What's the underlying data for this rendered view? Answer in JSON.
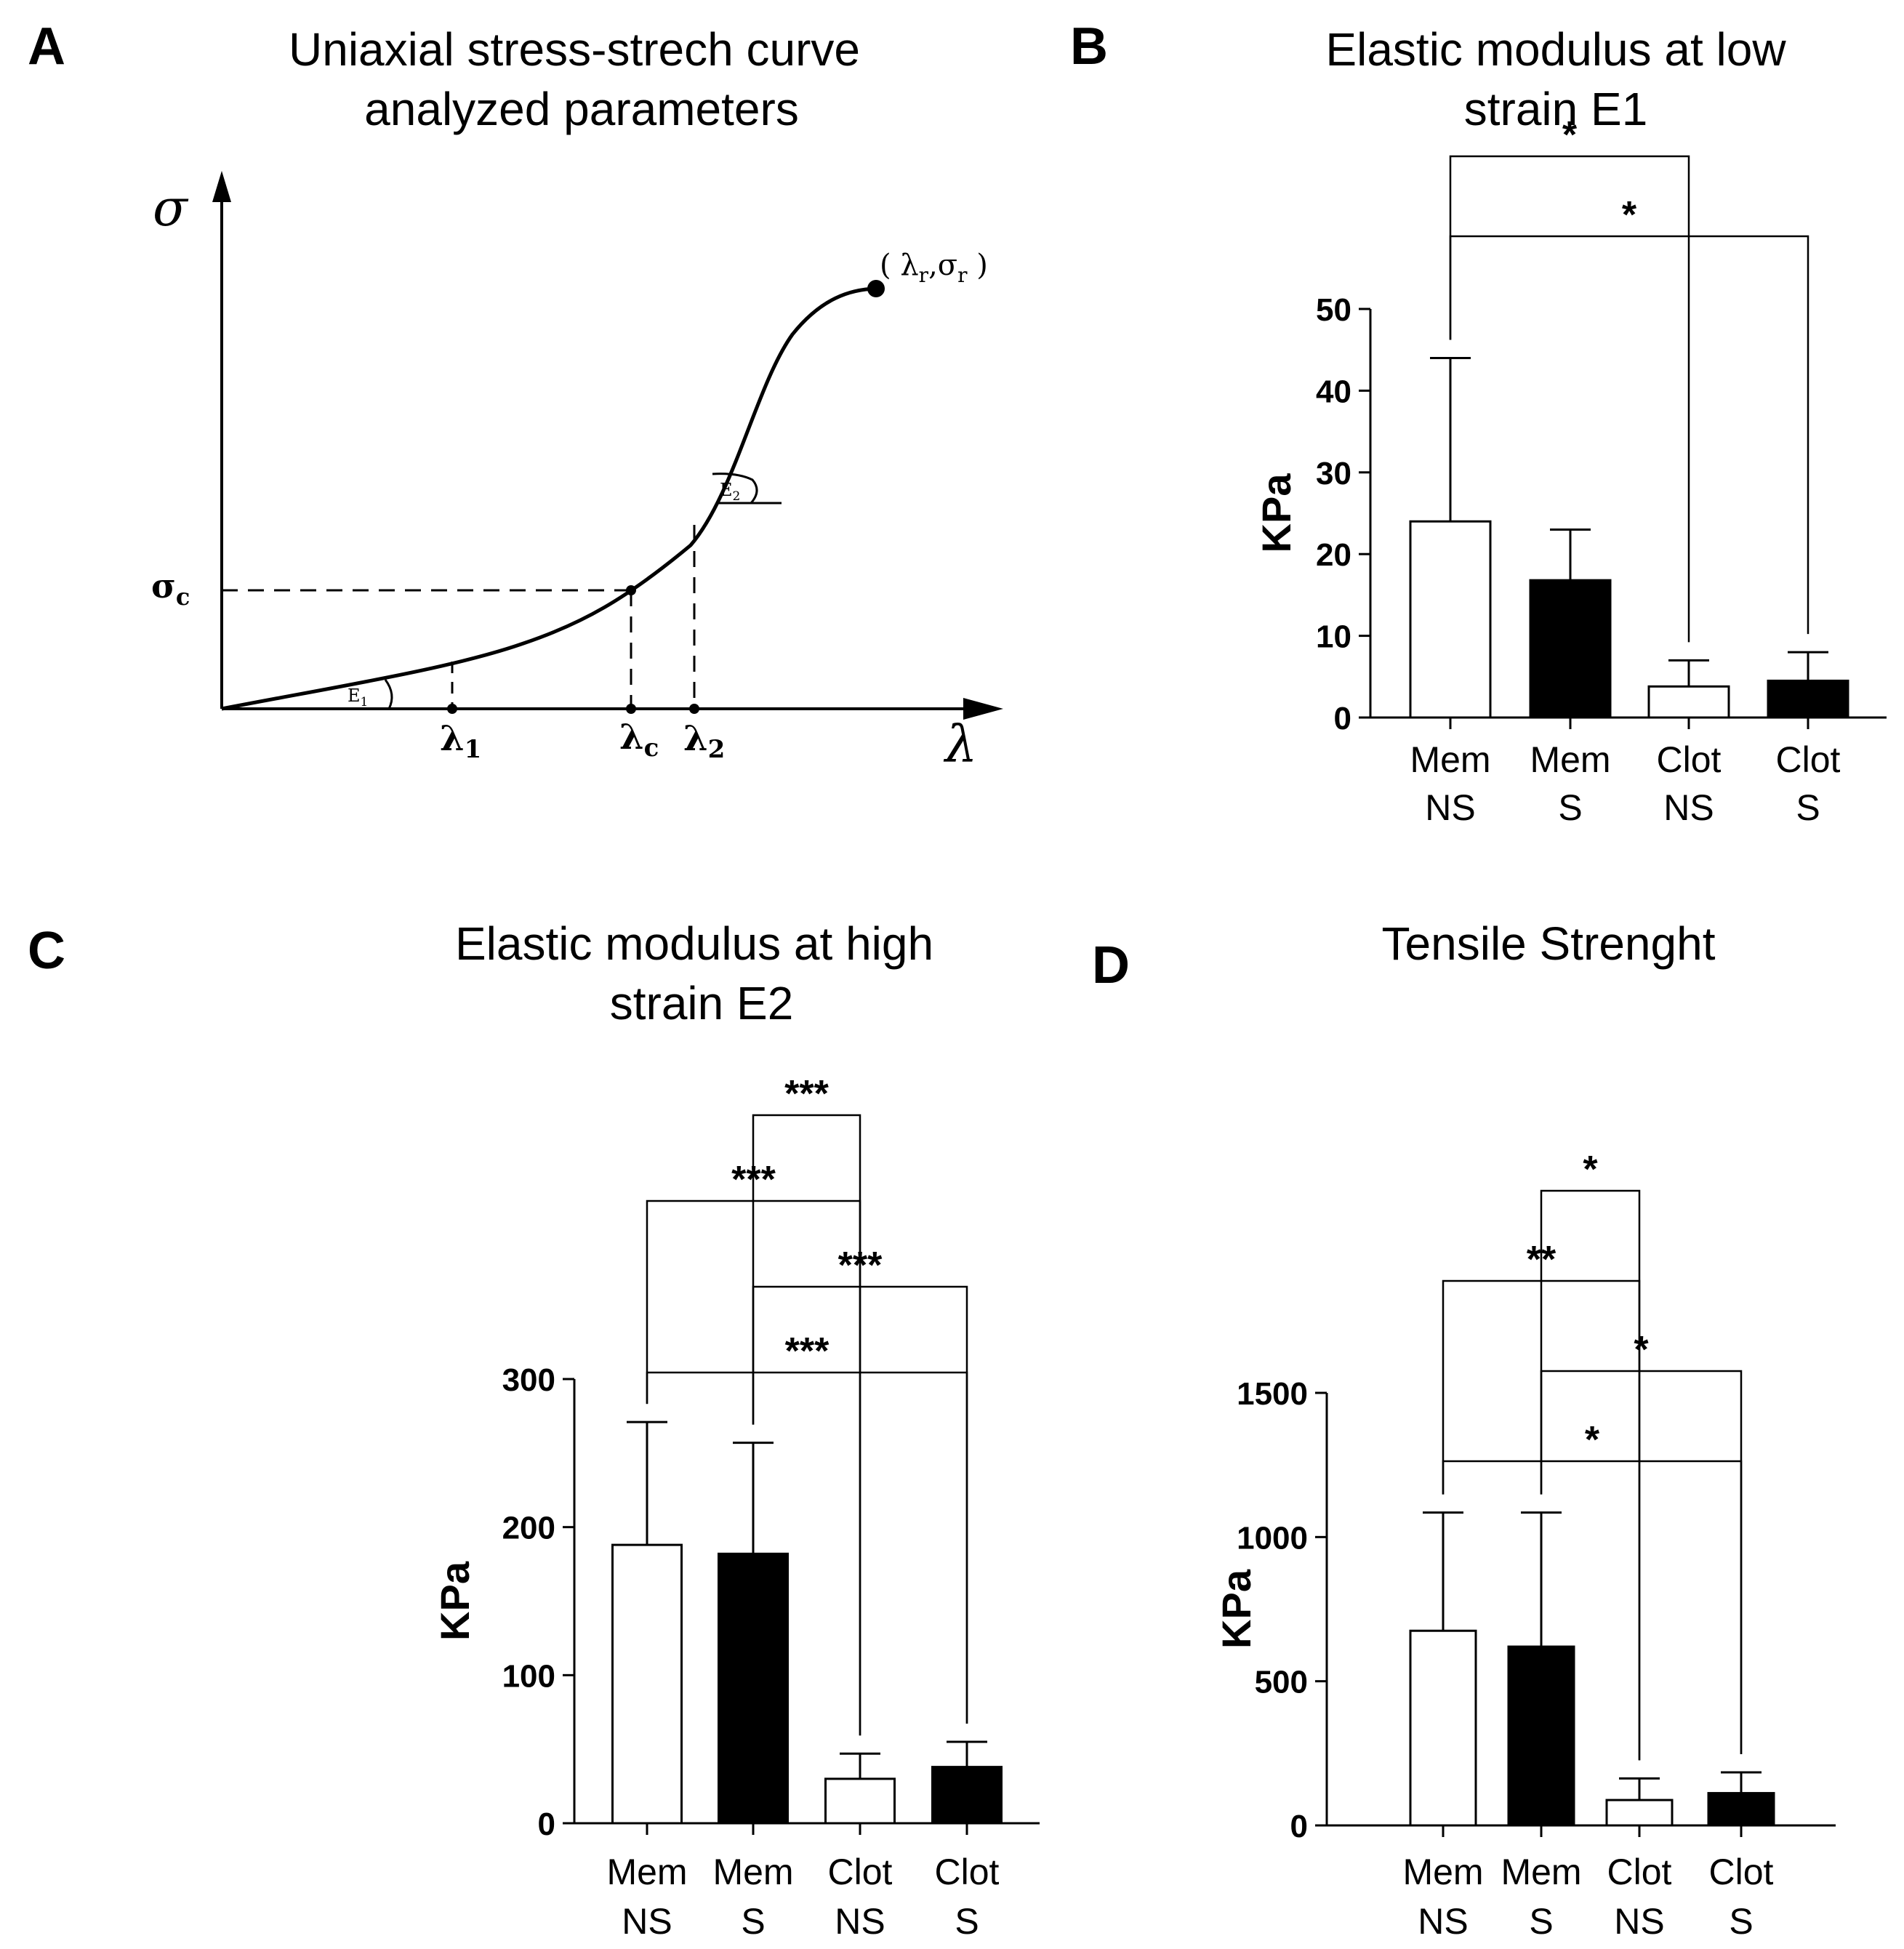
{
  "panels": {
    "a": {
      "letter": "A",
      "title_line1": "Uniaxial stress-strech curve",
      "title_line2": "analyzed parameters",
      "y_axis_symbol": "σ",
      "x_axis_symbol": "λ",
      "sigma_c_label": "σ",
      "sigma_c_sub": "c",
      "lambda1_label": "λ",
      "lambda1_sub": "1",
      "lambdac_label": "λ",
      "lambdac_sub": "c",
      "lambda2_label": "λ",
      "lambda2_sub": "2",
      "e1_label": "E",
      "e1_sub": "1",
      "e2_label": "E",
      "e2_sub": "2",
      "rupture_open": "( λ",
      "rupture_r1": "r",
      "rupture_sep": ",σ",
      "rupture_r2": "r",
      "rupture_close": " )"
    },
    "b": {
      "letter": "B",
      "title_line1": "Elastic modulus at low",
      "title_line2": "strain E1"
    },
    "c": {
      "letter": "C",
      "title_line1": "Elastic modulus at high",
      "title_line2": "strain E2"
    },
    "d": {
      "letter": "D",
      "title_line1": "Tensile Strenght",
      "title_line2": ""
    }
  },
  "chart_data": [
    {
      "type": "bar",
      "panel": "B",
      "title": "Elastic modulus at low strain E1",
      "ylabel": "KPa",
      "ylim": [
        0,
        50
      ],
      "yticks": [
        0,
        10,
        20,
        30,
        40,
        50
      ],
      "categories": [
        {
          "line1": "Mem",
          "line2": "NS",
          "fill": "#ffffff"
        },
        {
          "line1": "Mem",
          "line2": "S",
          "fill": "#000000"
        },
        {
          "line1": "Clot",
          "line2": "NS",
          "fill": "#ffffff"
        },
        {
          "line1": "Clot",
          "line2": "S",
          "fill": "#000000"
        }
      ],
      "values": [
        24,
        16.8,
        3.8,
        4.5
      ],
      "errors": [
        20,
        6.2,
        3.2,
        3.5
      ],
      "significance": [
        {
          "from": 0,
          "to": 2,
          "label": "*"
        },
        {
          "from": 0,
          "to": 3,
          "label": "*"
        }
      ]
    },
    {
      "type": "bar",
      "panel": "C",
      "title": "Elastic modulus at high strain E2",
      "ylabel": "KPa",
      "ylim": [
        0,
        300
      ],
      "yticks": [
        0,
        100,
        200,
        300
      ],
      "categories": [
        {
          "line1": "Mem",
          "line2": "NS",
          "fill": "#ffffff"
        },
        {
          "line1": "Mem",
          "line2": "S",
          "fill": "#000000"
        },
        {
          "line1": "Clot",
          "line2": "NS",
          "fill": "#ffffff"
        },
        {
          "line1": "Clot",
          "line2": "S",
          "fill": "#000000"
        }
      ],
      "values": [
        188,
        182,
        30,
        38
      ],
      "errors": [
        83,
        75,
        17,
        17
      ],
      "significance": [
        {
          "from": 1,
          "to": 2,
          "label": "***"
        },
        {
          "from": 0,
          "to": 2,
          "label": "***"
        },
        {
          "from": 1,
          "to": 3,
          "label": "***"
        },
        {
          "from": 0,
          "to": 3,
          "label": "***"
        }
      ]
    },
    {
      "type": "bar",
      "panel": "D",
      "title": "Tensile Strenght",
      "ylabel": "KPa",
      "ylim": [
        0,
        1500
      ],
      "yticks": [
        0,
        500,
        1000,
        1500
      ],
      "categories": [
        {
          "line1": "Mem",
          "line2": "NS",
          "fill": "#ffffff"
        },
        {
          "line1": "Mem",
          "line2": "S",
          "fill": "#000000"
        },
        {
          "line1": "Clot",
          "line2": "NS",
          "fill": "#ffffff"
        },
        {
          "line1": "Clot",
          "line2": "S",
          "fill": "#000000"
        }
      ],
      "values": [
        675,
        620,
        88,
        112
      ],
      "errors": [
        410,
        465,
        75,
        72
      ],
      "significance": [
        {
          "from": 1,
          "to": 2,
          "label": "*"
        },
        {
          "from": 0,
          "to": 2,
          "label": "**"
        },
        {
          "from": 1,
          "to": 3,
          "label": "*"
        },
        {
          "from": 0,
          "to": 3,
          "label": "*"
        }
      ]
    }
  ]
}
